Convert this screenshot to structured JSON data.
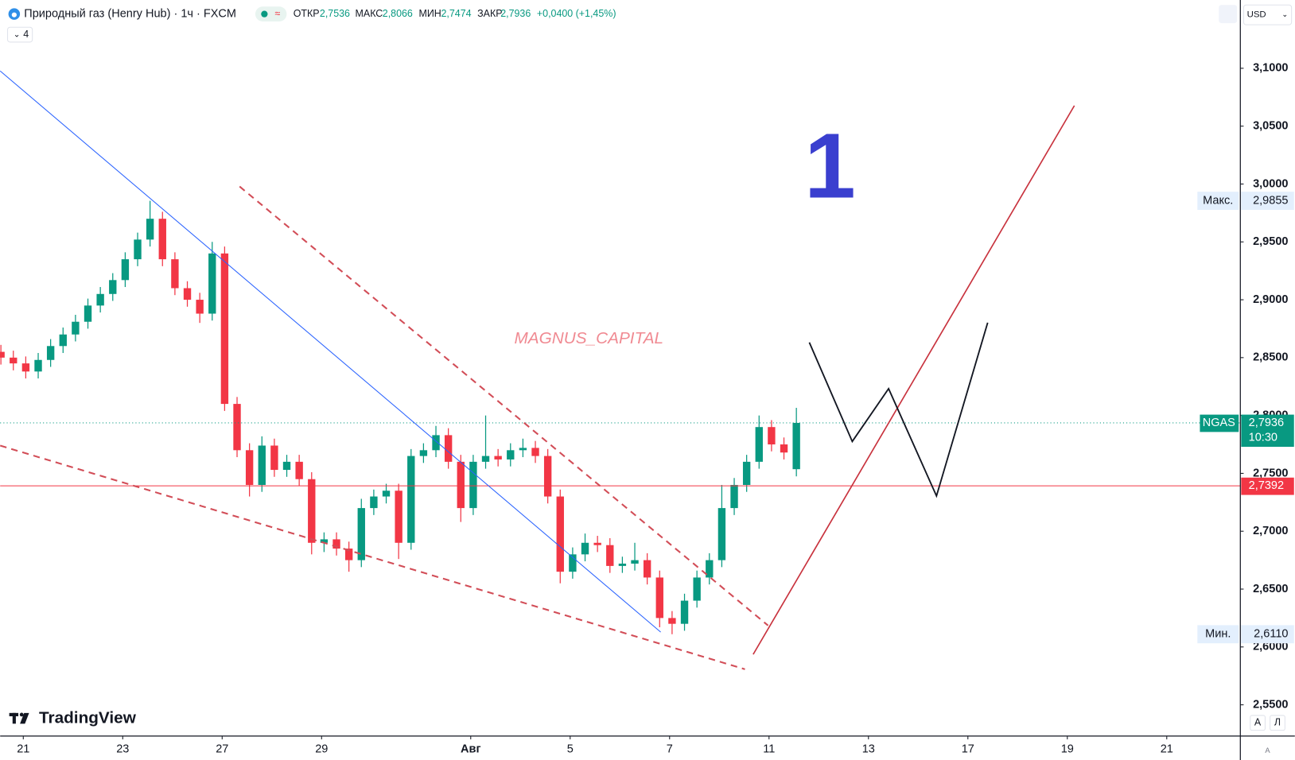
{
  "chart_data": {
    "type": "candlestick",
    "title": "Природный газ (Henry Hub) · 1ч · FXCM",
    "ohlc_header": {
      "open_label": "ОТКР",
      "open": "2,7536",
      "high_label": "МАКС",
      "high": "2,8066",
      "low_label": "МИН",
      "low": "2,7474",
      "close_label": "ЗАКР",
      "close": "2,7936",
      "change": "+0,0400 (+1,45%)"
    },
    "indicator_count": "4",
    "currency": "USD",
    "watermark": "MAGNUS_CAPITAL",
    "annotation": "1",
    "brand": "TradingView",
    "axis_buttons": [
      "A",
      "Л",
      "A"
    ],
    "up_color": "#089981",
    "down_color": "#f23645",
    "x": [
      -0.45,
      -0.2,
      0.05,
      0.3,
      0.55,
      0.8,
      1.05,
      1.3,
      1.55,
      1.8,
      2.05,
      2.3,
      2.55,
      2.8,
      3.05,
      3.3,
      3.55,
      3.8,
      4.05,
      4.3,
      4.55,
      4.8,
      5.05,
      5.3,
      5.55,
      5.8,
      6.05,
      6.3,
      6.55,
      6.8,
      7.05,
      7.3,
      7.55,
      7.8,
      8.05,
      8.3,
      8.55,
      8.8,
      9.05,
      9.3,
      9.55,
      9.8,
      10.05,
      10.3,
      10.55,
      10.8,
      11.05,
      11.3,
      11.55,
      11.8,
      12.05,
      12.3,
      12.55,
      12.8,
      13.05,
      13.3,
      13.55,
      13.8,
      14.05,
      14.3,
      14.55,
      14.8,
      15.05,
      15.3,
      15.55
    ],
    "open": [
      2.855,
      2.85,
      2.845,
      2.838,
      2.848,
      2.86,
      2.87,
      2.881,
      2.895,
      2.905,
      2.917,
      2.935,
      2.952,
      2.97,
      2.935,
      2.91,
      2.9,
      2.888,
      2.94,
      2.81,
      2.77,
      2.74,
      2.774,
      2.753,
      2.76,
      2.745,
      2.69,
      2.693,
      2.685,
      2.675,
      2.72,
      2.73,
      2.735,
      2.69,
      2.765,
      2.77,
      2.783,
      2.76,
      2.72,
      2.76,
      2.765,
      2.762,
      2.77,
      2.772,
      2.765,
      2.73,
      2.665,
      2.68,
      2.69,
      2.688,
      2.67,
      2.672,
      2.675,
      2.66,
      2.625,
      2.62,
      2.64,
      2.66,
      2.675,
      2.72,
      2.74,
      2.76,
      2.79,
      2.775,
      2.7536
    ],
    "high": [
      2.861,
      2.856,
      2.851,
      2.854,
      2.866,
      2.876,
      2.887,
      2.901,
      2.911,
      2.923,
      2.941,
      2.958,
      2.9855,
      2.976,
      2.941,
      2.916,
      2.906,
      2.95,
      2.946,
      2.816,
      2.776,
      2.782,
      2.78,
      2.766,
      2.766,
      2.751,
      2.699,
      2.699,
      2.691,
      2.728,
      2.736,
      2.741,
      2.741,
      2.771,
      2.776,
      2.791,
      2.789,
      2.766,
      2.766,
      2.8,
      2.771,
      2.776,
      2.78,
      2.778,
      2.771,
      2.736,
      2.686,
      2.698,
      2.696,
      2.694,
      2.678,
      2.69,
      2.681,
      2.666,
      2.631,
      2.646,
      2.666,
      2.681,
      2.74,
      2.746,
      2.766,
      2.8,
      2.796,
      2.781,
      2.8066
    ],
    "low": [
      2.844,
      2.839,
      2.832,
      2.832,
      2.842,
      2.854,
      2.864,
      2.875,
      2.889,
      2.899,
      2.911,
      2.929,
      2.946,
      2.929,
      2.904,
      2.894,
      2.88,
      2.882,
      2.804,
      2.764,
      2.73,
      2.734,
      2.747,
      2.747,
      2.739,
      2.68,
      2.682,
      2.679,
      2.665,
      2.669,
      2.714,
      2.724,
      2.676,
      2.684,
      2.759,
      2.764,
      2.754,
      2.708,
      2.714,
      2.754,
      2.756,
      2.756,
      2.764,
      2.759,
      2.724,
      2.655,
      2.659,
      2.674,
      2.682,
      2.664,
      2.664,
      2.666,
      2.654,
      2.617,
      2.611,
      2.614,
      2.634,
      2.654,
      2.669,
      2.714,
      2.734,
      2.754,
      2.769,
      2.762,
      2.7474
    ],
    "close": [
      2.85,
      2.845,
      2.838,
      2.848,
      2.86,
      2.87,
      2.881,
      2.895,
      2.905,
      2.917,
      2.935,
      2.952,
      2.97,
      2.935,
      2.91,
      2.9,
      2.888,
      2.94,
      2.81,
      2.77,
      2.74,
      2.774,
      2.753,
      2.76,
      2.745,
      2.69,
      2.693,
      2.685,
      2.675,
      2.72,
      2.73,
      2.735,
      2.69,
      2.765,
      2.77,
      2.783,
      2.76,
      2.72,
      2.76,
      2.765,
      2.762,
      2.77,
      2.772,
      2.765,
      2.73,
      2.665,
      2.68,
      2.69,
      2.688,
      2.67,
      2.672,
      2.675,
      2.66,
      2.625,
      2.62,
      2.64,
      2.66,
      2.675,
      2.72,
      2.74,
      2.76,
      2.79,
      2.775,
      2.768,
      2.7936
    ],
    "xlim": [
      -0.465,
      24.48
    ],
    "xticks": [
      {
        "value": 0,
        "label": "21"
      },
      {
        "value": 2,
        "label": "23"
      },
      {
        "value": 4,
        "label": "27"
      },
      {
        "value": 6,
        "label": "29"
      },
      {
        "value": 9,
        "label": "Авг"
      },
      {
        "value": 11,
        "label": "5"
      },
      {
        "value": 13,
        "label": "7"
      },
      {
        "value": 15,
        "label": "11"
      },
      {
        "value": 17,
        "label": "13"
      },
      {
        "value": 19,
        "label": "17"
      },
      {
        "value": 21,
        "label": "19"
      },
      {
        "value": 23,
        "label": "21"
      }
    ],
    "ylim": [
      2.523,
      3.159
    ],
    "yticks": [
      {
        "value": 2.55,
        "label": "2,5500"
      },
      {
        "value": 2.6,
        "label": "2,6000"
      },
      {
        "value": 2.65,
        "label": "2,6500"
      },
      {
        "value": 2.7,
        "label": "2,7000"
      },
      {
        "value": 2.75,
        "label": "2,7500"
      },
      {
        "value": 2.8,
        "label": "2,8000"
      },
      {
        "value": 2.85,
        "label": "2,8500"
      },
      {
        "value": 2.9,
        "label": "2,9000"
      },
      {
        "value": 2.95,
        "label": "2,9500"
      },
      {
        "value": 3.0,
        "label": "3,0000"
      },
      {
        "value": 3.05,
        "label": "3,0500"
      },
      {
        "value": 3.1,
        "label": "3,1000"
      }
    ],
    "price_lines": [
      {
        "name": "Макс.",
        "value": 2.9855,
        "label": "2,9855"
      },
      {
        "name": "Мин.",
        "value": 2.611,
        "label": "2,6110"
      }
    ],
    "last_price": {
      "name": "NGAS",
      "value": 2.7936,
      "label": "2,7936",
      "countdown": "10:30",
      "color": "#089981"
    },
    "level": {
      "value": 2.7392,
      "label": "2,7392",
      "color": "#f23645"
    }
  }
}
